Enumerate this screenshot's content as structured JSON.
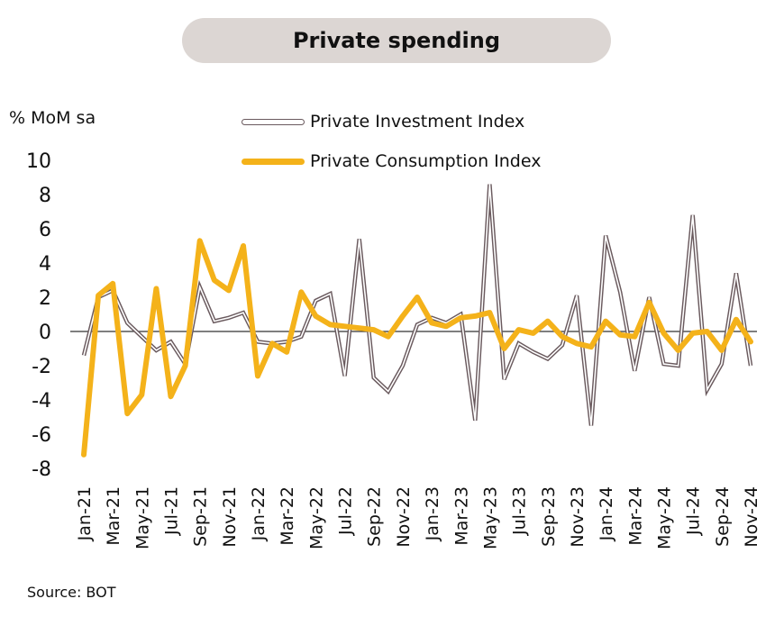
{
  "title": "Private spending",
  "y_unit": "% MoM sa",
  "source": "Source: BOT",
  "colors": {
    "investment": "#6a5a5e",
    "consumption": "#f4b21a",
    "title_bg": "#dcd6d3"
  },
  "chart_data": {
    "type": "line",
    "title": "Private spending",
    "ylabel": "% MoM sa",
    "xlabel": "",
    "ylim": [
      -8,
      10
    ],
    "yticks": [
      10,
      8,
      6,
      4,
      2,
      0,
      -2,
      -4,
      -6,
      -8
    ],
    "legend_position": "top",
    "grid": false,
    "x": [
      "Jan-21",
      "Feb-21",
      "Mar-21",
      "Apr-21",
      "May-21",
      "Jun-21",
      "Jul-21",
      "Aug-21",
      "Sep-21",
      "Oct-21",
      "Nov-21",
      "Dec-21",
      "Jan-22",
      "Feb-22",
      "Mar-22",
      "Apr-22",
      "May-22",
      "Jun-22",
      "Jul-22",
      "Aug-22",
      "Sep-22",
      "Oct-22",
      "Nov-22",
      "Dec-22",
      "Jan-23",
      "Feb-23",
      "Mar-23",
      "Apr-23",
      "May-23",
      "Jun-23",
      "Jul-23",
      "Aug-23",
      "Sep-23",
      "Oct-23",
      "Nov-23",
      "Dec-23",
      "Jan-24",
      "Feb-24",
      "Mar-24",
      "Apr-24",
      "May-24",
      "Jun-24",
      "Jul-24",
      "Aug-24",
      "Sep-24",
      "Oct-24",
      "Nov-24"
    ],
    "x_tick_labels": [
      "Jan-21",
      "Mar-21",
      "May-21",
      "Jul-21",
      "Sep-21",
      "Nov-21",
      "Jan-22",
      "Mar-22",
      "May-22",
      "Jul-22",
      "Sep-22",
      "Nov-22",
      "Jan-23",
      "Mar-23",
      "May-23",
      "Jul-23",
      "Sep-23",
      "Nov-23",
      "Jan-24",
      "Mar-24",
      "May-24",
      "Jul-24",
      "Sep-24",
      "Nov-24"
    ],
    "series": [
      {
        "name": "Private Investment Index",
        "values": [
          -1.4,
          2.0,
          2.4,
          0.5,
          -0.3,
          -1.1,
          -0.6,
          -1.9,
          2.6,
          0.6,
          0.8,
          1.1,
          -0.6,
          -0.7,
          -0.6,
          -0.3,
          1.8,
          2.2,
          -2.6,
          5.4,
          -2.7,
          -3.5,
          -2.0,
          0.4,
          0.8,
          0.5,
          1.0,
          -5.2,
          8.6,
          -2.8,
          -0.7,
          -1.2,
          -1.6,
          -0.8,
          2.1,
          -5.5,
          5.6,
          2.3,
          -2.3,
          2.0,
          -1.9,
          -2.0,
          6.8,
          -3.4,
          -1.9,
          3.4,
          -2.0
        ]
      },
      {
        "name": "Private Consumption Index",
        "values": [
          -7.2,
          2.1,
          2.8,
          -4.8,
          -3.7,
          2.5,
          -3.8,
          -2.0,
          5.3,
          3.0,
          2.4,
          5.0,
          -2.6,
          -0.7,
          -1.2,
          2.3,
          0.9,
          0.4,
          0.3,
          0.2,
          0.1,
          -0.3,
          0.9,
          2.0,
          0.5,
          0.3,
          0.8,
          0.9,
          1.1,
          -1.0,
          0.1,
          -0.1,
          0.6,
          -0.3,
          -0.7,
          -0.9,
          0.6,
          -0.2,
          -0.3,
          1.7,
          -0.1,
          -1.1,
          -0.1,
          0.0,
          -1.1,
          0.7,
          -0.6
        ]
      }
    ]
  }
}
